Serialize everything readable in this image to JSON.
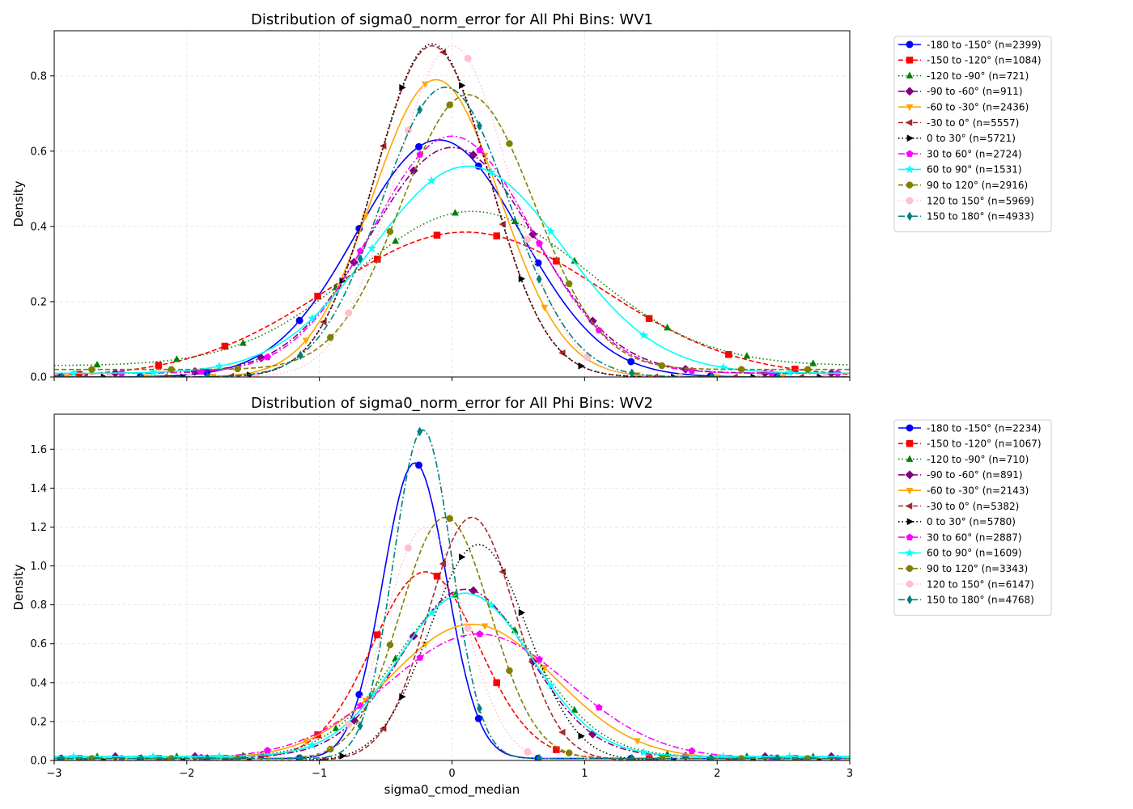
{
  "chart_data": [
    {
      "type": "line",
      "title": "Distribution of sigma0_norm_error for All Phi Bins: WV1",
      "xlabel": "",
      "ylabel": "Density",
      "xlim": [
        -3,
        3
      ],
      "ylim": [
        0,
        0.92
      ],
      "xticks": [
        -3,
        -2,
        -1,
        0,
        1,
        2,
        3
      ],
      "xtick_labels": [
        "",
        "",
        "",
        "",
        "",
        "",
        ""
      ],
      "yticks": [
        0.0,
        0.2,
        0.4,
        0.6,
        0.8
      ],
      "ytick_labels": [
        "0.0",
        "0.2",
        "0.4",
        "0.6",
        "0.8"
      ],
      "grid": true,
      "legend_position": "outside-right",
      "series": [
        {
          "name": "-180 to -150° (n=2399)",
          "color": "#0000ff",
          "dash": "solid",
          "marker": "circle",
          "mu": -0.1,
          "sigma": 0.62,
          "peak": 0.63,
          "tail": 0.0
        },
        {
          "name": "-150 to -120° (n=1084)",
          "color": "#ff0000",
          "dash": "dashed",
          "marker": "square",
          "mu": 0.1,
          "sigma": 1.03,
          "peak": 0.385,
          "tail": 0.0
        },
        {
          "name": "-120 to -90° (n=721)",
          "color": "#008000",
          "dash": "dotted",
          "marker": "triangle-up",
          "mu": 0.15,
          "sigma": 0.88,
          "peak": 0.44,
          "tail": 0.03
        },
        {
          "name": "-90 to -60° (n=911)",
          "color": "#800080",
          "dash": "dashdot",
          "marker": "diamond",
          "mu": 0.0,
          "sigma": 0.62,
          "peak": 0.61,
          "tail": 0.01
        },
        {
          "name": "-60 to -30° (n=2436)",
          "color": "#ffa500",
          "dash": "solid",
          "marker": "triangle-down",
          "mu": -0.12,
          "sigma": 0.48,
          "peak": 0.79,
          "tail": 0.0
        },
        {
          "name": "-30 to 0° (n=5557)",
          "color": "#a52a2a",
          "dash": "dashed",
          "marker": "triangle-left",
          "mu": -0.15,
          "sigma": 0.43,
          "peak": 0.88,
          "tail": 0.0
        },
        {
          "name": "0 to 30° (n=5721)",
          "color": "#000000",
          "dash": "dotted",
          "marker": "triangle-right",
          "mu": -0.15,
          "sigma": 0.43,
          "peak": 0.885,
          "tail": 0.0
        },
        {
          "name": "30 to 60° (n=2724)",
          "color": "#ff00ff",
          "dash": "dashdot",
          "marker": "pentagon",
          "mu": 0.0,
          "sigma": 0.6,
          "peak": 0.64,
          "tail": 0.01
        },
        {
          "name": "60 to 90° (n=1531)",
          "color": "#00ffff",
          "dash": "solid",
          "marker": "star",
          "mu": 0.12,
          "sigma": 0.72,
          "peak": 0.56,
          "tail": 0.01
        },
        {
          "name": "90 to 120° (n=2916)",
          "color": "#808000",
          "dash": "dashed",
          "marker": "octagon",
          "mu": 0.12,
          "sigma": 0.5,
          "peak": 0.75,
          "tail": 0.02
        },
        {
          "name": "120 to 150° (n=5969)",
          "color": "#ffc0cb",
          "dash": "dotted",
          "marker": "circle",
          "mu": 0.0,
          "sigma": 0.43,
          "peak": 0.88,
          "tail": 0.0
        },
        {
          "name": "150 to 180° (n=4933)",
          "color": "#008080",
          "dash": "dashdot",
          "marker": "thin-diamond",
          "mu": -0.05,
          "sigma": 0.48,
          "peak": 0.77,
          "tail": 0.0
        }
      ]
    },
    {
      "type": "line",
      "title": "Distribution of sigma0_norm_error for All Phi Bins: WV2",
      "xlabel": "sigma0_cmod_median",
      "ylabel": "Density",
      "xlim": [
        -3,
        3
      ],
      "ylim": [
        0,
        1.78
      ],
      "xticks": [
        -3,
        -2,
        -1,
        0,
        1,
        2,
        3
      ],
      "xtick_labels": [
        "−3",
        "−2",
        "−1",
        "0",
        "1",
        "2",
        "3"
      ],
      "yticks": [
        0.0,
        0.2,
        0.4,
        0.6,
        0.8,
        1.0,
        1.2,
        1.4,
        1.6
      ],
      "ytick_labels": [
        "0.0",
        "0.2",
        "0.4",
        "0.6",
        "0.8",
        "1.0",
        "1.2",
        "1.4",
        "1.6"
      ],
      "grid": true,
      "legend_position": "outside-right",
      "series": [
        {
          "name": "-180 to -150° (n=2234)",
          "color": "#0000ff",
          "dash": "solid",
          "marker": "circle",
          "mu": -0.28,
          "sigma": 0.24,
          "peak": 1.53,
          "tail": 0.01
        },
        {
          "name": "-150 to -120° (n=1067)",
          "color": "#ff0000",
          "dash": "dashed",
          "marker": "square",
          "mu": -0.2,
          "sigma": 0.4,
          "peak": 0.97,
          "tail": 0.01
        },
        {
          "name": "-120 to -90° (n=710)",
          "color": "#008000",
          "dash": "dotted",
          "marker": "triangle-up",
          "mu": 0.1,
          "sigma": 0.52,
          "peak": 0.86,
          "tail": 0.02
        },
        {
          "name": "-90 to -60° (n=891)",
          "color": "#800080",
          "dash": "dashdot",
          "marker": "diamond",
          "mu": 0.1,
          "sigma": 0.48,
          "peak": 0.88,
          "tail": 0.02
        },
        {
          "name": "-60 to -30° (n=2143)",
          "color": "#ffa500",
          "dash": "solid",
          "marker": "triangle-down",
          "mu": 0.15,
          "sigma": 0.62,
          "peak": 0.7,
          "tail": 0.01
        },
        {
          "name": "-30 to 0° (n=5382)",
          "color": "#a52a2a",
          "dash": "dashed",
          "marker": "triangle-left",
          "mu": 0.15,
          "sigma": 0.33,
          "peak": 1.25,
          "tail": 0.0
        },
        {
          "name": "0 to 30° (n=5780)",
          "color": "#000000",
          "dash": "dotted",
          "marker": "triangle-right",
          "mu": 0.2,
          "sigma": 0.37,
          "peak": 1.11,
          "tail": 0.0
        },
        {
          "name": "30 to 60° (n=2887)",
          "color": "#ff00ff",
          "dash": "dashdot",
          "marker": "pentagon",
          "mu": 0.2,
          "sigma": 0.68,
          "peak": 0.65,
          "tail": 0.01
        },
        {
          "name": "60 to 90° (n=1609)",
          "color": "#00ffff",
          "dash": "solid",
          "marker": "star",
          "mu": 0.1,
          "sigma": 0.5,
          "peak": 0.86,
          "tail": 0.02
        },
        {
          "name": "90 to 120° (n=3343)",
          "color": "#808000",
          "dash": "dashed",
          "marker": "octagon",
          "mu": -0.05,
          "sigma": 0.34,
          "peak": 1.25,
          "tail": 0.01
        },
        {
          "name": "120 to 150° (n=6147)",
          "color": "#ffc0cb",
          "dash": "dotted",
          "marker": "circle",
          "mu": -0.2,
          "sigma": 0.3,
          "peak": 1.2,
          "tail": 0.0
        },
        {
          "name": "150 to 180° (n=4768)",
          "color": "#008080",
          "dash": "dashdot",
          "marker": "thin-diamond",
          "mu": -0.22,
          "sigma": 0.22,
          "peak": 1.7,
          "tail": 0.01
        }
      ]
    }
  ]
}
